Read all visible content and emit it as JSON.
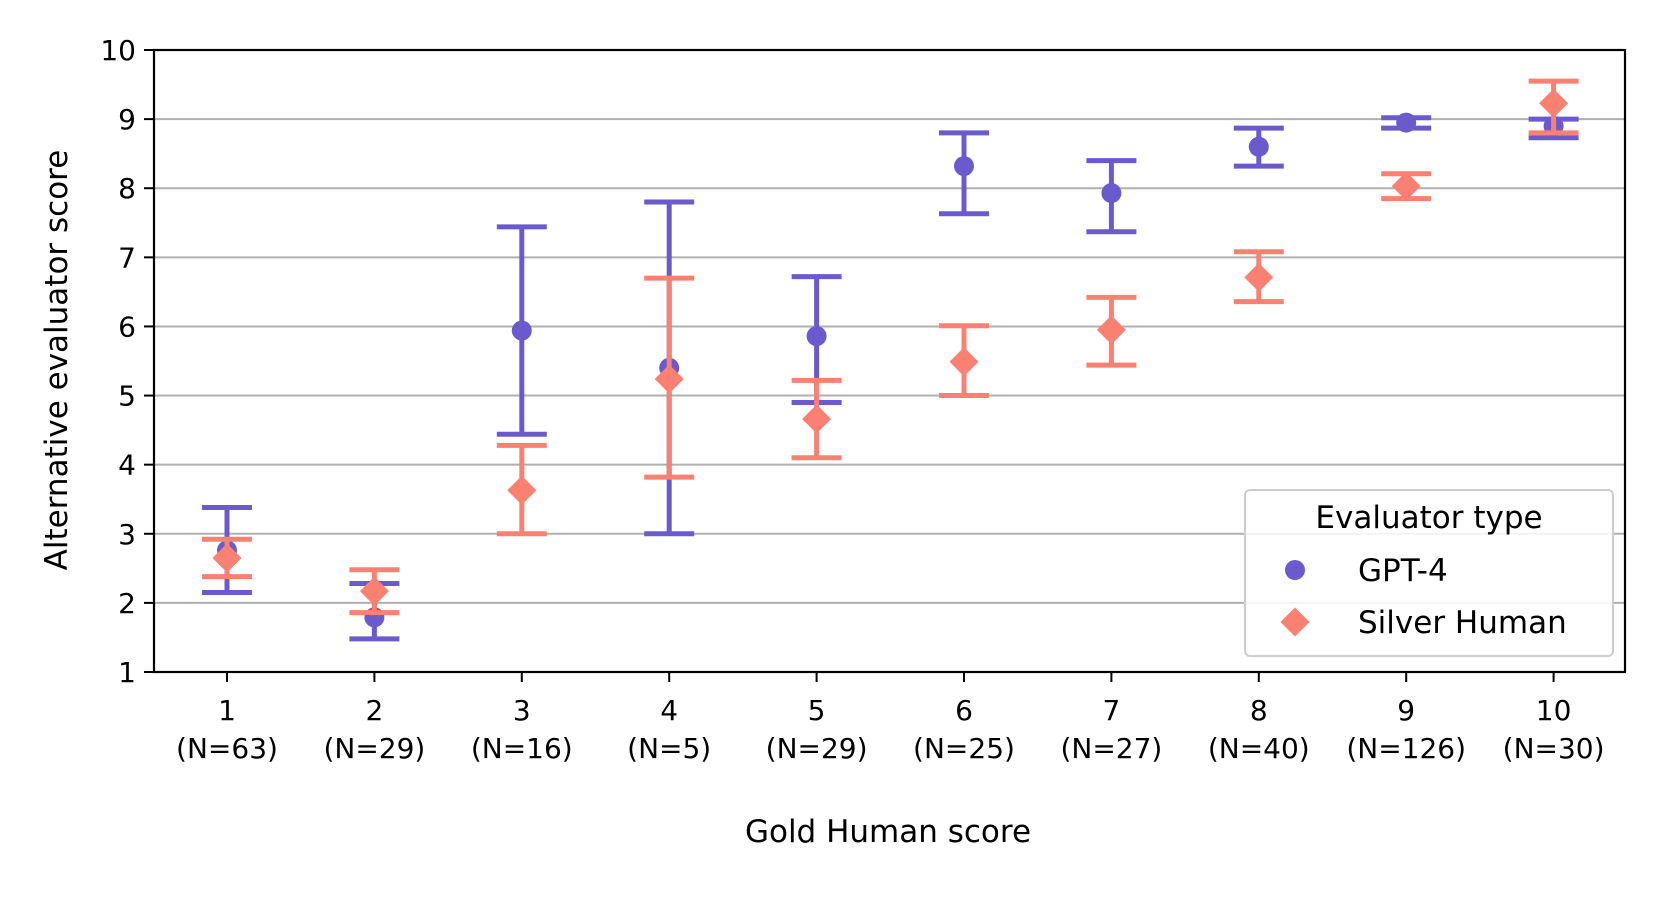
{
  "chart_data": {
    "type": "scatter",
    "xlabel": "Gold Human score",
    "ylabel": "Alternative evaluator score",
    "ylim": [
      1,
      10
    ],
    "yticks": [
      "1",
      "2",
      "3",
      "4",
      "5",
      "6",
      "7",
      "8",
      "9",
      "10"
    ],
    "grid": "horizontal",
    "categories": [
      "1",
      "2",
      "3",
      "4",
      "5",
      "6",
      "7",
      "8",
      "9",
      "10"
    ],
    "category_counts": [
      "(N=63)",
      "(N=29)",
      "(N=16)",
      "(N=5)",
      "(N=29)",
      "(N=25)",
      "(N=27)",
      "(N=40)",
      "(N=126)",
      "(N=30)"
    ],
    "legend": {
      "title": "Evaluator type",
      "placement": "lower right"
    },
    "series": [
      {
        "name": "GPT-4",
        "marker": "circle",
        "color": "#6a5acd",
        "values": [
          2.76,
          1.79,
          5.94,
          5.4,
          5.86,
          8.32,
          7.93,
          8.6,
          8.95,
          8.9
        ],
        "lower": [
          2.15,
          1.48,
          4.44,
          3.0,
          4.9,
          7.63,
          7.37,
          8.32,
          8.87,
          8.73
        ],
        "upper": [
          3.38,
          2.28,
          7.44,
          7.8,
          6.72,
          8.8,
          8.4,
          8.87,
          9.02,
          9.0
        ]
      },
      {
        "name": "Silver Human",
        "marker": "diamond",
        "color": "#fa8072",
        "values": [
          2.65,
          2.17,
          3.63,
          5.24,
          4.66,
          5.49,
          5.95,
          6.71,
          8.03,
          9.23
        ],
        "lower": [
          2.38,
          1.86,
          3.0,
          3.82,
          4.1,
          5.0,
          5.44,
          6.36,
          7.85,
          8.8
        ],
        "upper": [
          2.92,
          2.48,
          4.28,
          6.7,
          5.22,
          6.01,
          6.42,
          7.08,
          8.21,
          9.55
        ]
      }
    ]
  }
}
